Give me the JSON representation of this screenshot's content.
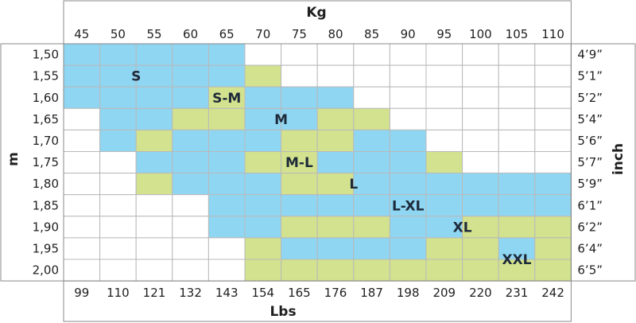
{
  "chart_data": {
    "type": "heatmap",
    "title": "",
    "top_axis_label": "Kg",
    "bottom_axis_label": "Lbs",
    "left_axis_label": "m",
    "right_axis_label": "inch",
    "kg_ticks": [
      "45",
      "50",
      "55",
      "60",
      "65",
      "70",
      "75",
      "80",
      "85",
      "90",
      "95",
      "100",
      "105",
      "110"
    ],
    "lbs_ticks": [
      "99",
      "110",
      "121",
      "132",
      "143",
      "154",
      "165",
      "176",
      "187",
      "198",
      "209",
      "220",
      "231",
      "242"
    ],
    "m_ticks": [
      "1,50",
      "1,55",
      "1,60",
      "1,65",
      "1,70",
      "1,75",
      "1,80",
      "1,85",
      "1,90",
      "1,95",
      "2,00"
    ],
    "inch_ticks": [
      "4’9”",
      "5’1”",
      "5’2”",
      "5’4”",
      "5’6”",
      "5’7”",
      "5’9”",
      "6’1”",
      "6’2”",
      "6’4”",
      "6’5”"
    ],
    "size_labels": [
      {
        "text": "S",
        "row": 1,
        "col": 1.5
      },
      {
        "text": "S-M",
        "row": 2,
        "col": 4
      },
      {
        "text": "M",
        "row": 3,
        "col": 5.5
      },
      {
        "text": "M-L",
        "row": 5,
        "col": 6
      },
      {
        "text": "L",
        "row": 6,
        "col": 7.5
      },
      {
        "text": "L-XL",
        "row": 7,
        "col": 9
      },
      {
        "text": "XL",
        "row": 8,
        "col": 10.5
      },
      {
        "text": "XXL",
        "row": 9.5,
        "col": 12
      }
    ],
    "legend_colors": {
      "blue": "#8fd6f3",
      "green": "#d2e28e",
      "empty": "#ffffff",
      "grid": "#b9b9b9",
      "frame": "#8a8a8a"
    },
    "cell_map_legend": "b = blue cell, g = green cell, . = empty",
    "grid": [
      "bbbbb.........",
      "bbbbbg........",
      "bbbbgbbb......",
      ".bbggbbgg.....",
      ".bgbbbggbb....",
      "..bbbggbbbg...",
      "..gbbbggbbbbbb",
      "....bbbbbbbbbb",
      "....bbgggbbggg",
      ".....gbbbbggbg",
      ".....ggggggggg"
    ]
  }
}
